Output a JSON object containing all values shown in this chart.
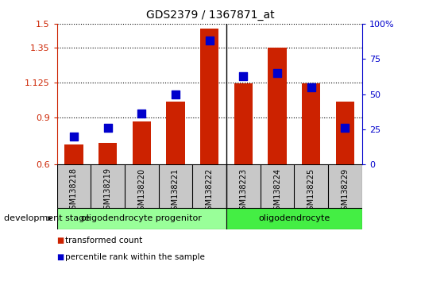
{
  "title": "GDS2379 / 1367871_at",
  "samples": [
    "GSM138218",
    "GSM138219",
    "GSM138220",
    "GSM138221",
    "GSM138222",
    "GSM138223",
    "GSM138224",
    "GSM138225",
    "GSM138229"
  ],
  "transformed_count": [
    0.73,
    0.74,
    0.875,
    1.0,
    1.47,
    1.12,
    1.35,
    1.12,
    1.0
  ],
  "percentile_rank": [
    20,
    26,
    36,
    50,
    88,
    63,
    65,
    55,
    26
  ],
  "ylim_left": [
    0.6,
    1.5
  ],
  "ylim_right": [
    0,
    100
  ],
  "yticks_left": [
    0.6,
    0.9,
    1.125,
    1.35,
    1.5
  ],
  "ytick_labels_left": [
    "0.6",
    "0.9",
    "1.125",
    "1.35",
    "1.5"
  ],
  "yticks_right": [
    0,
    25,
    50,
    75,
    100
  ],
  "ytick_labels_right": [
    "0",
    "25",
    "50",
    "75",
    "100%"
  ],
  "bar_color": "#CC2200",
  "dot_color": "#0000CC",
  "groups": [
    {
      "label": "oligodendrocyte progenitor",
      "start": 0,
      "end": 5,
      "color": "#99FF99"
    },
    {
      "label": "oligodendrocyte",
      "start": 5,
      "end": 9,
      "color": "#55EE55"
    }
  ],
  "stage_label": "development stage",
  "legend_items": [
    {
      "color": "#CC2200",
      "label": "transformed count"
    },
    {
      "color": "#0000CC",
      "label": "percentile rank within the sample"
    }
  ],
  "tick_bg_color": "#C8C8C8",
  "plot_bg_color": "#FFFFFF",
  "group1_color": "#99FF99",
  "group2_color": "#44EE44"
}
